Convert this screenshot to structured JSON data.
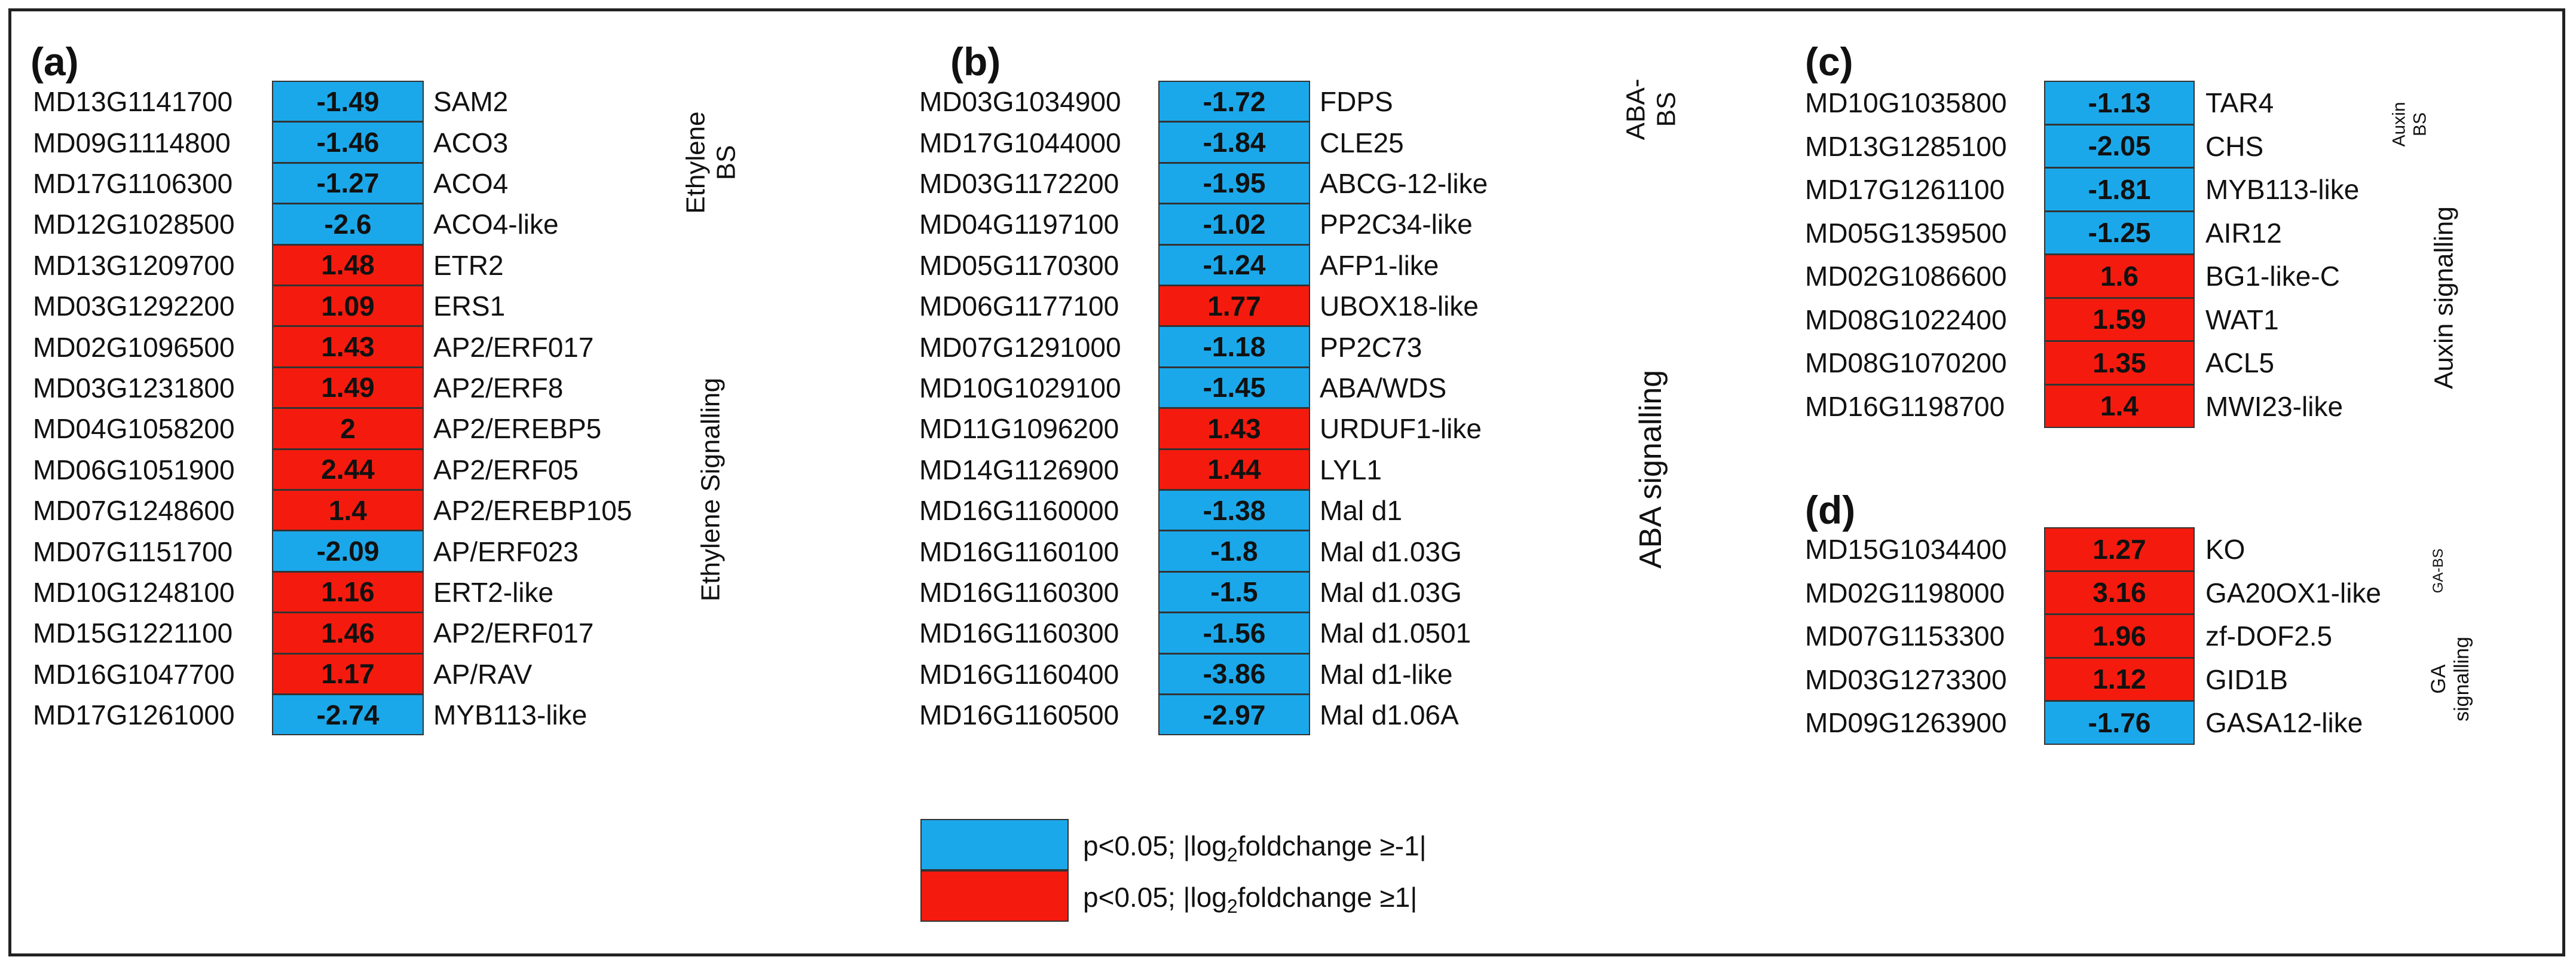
{
  "chart_data": [
    {
      "type": "heatmap",
      "panel": "(a)",
      "value_label": "log2 fold change",
      "rows": [
        {
          "id": "MD13G1141700",
          "value": -1.49,
          "display": "-1.49",
          "gene": "SAM2"
        },
        {
          "id": "MD09G1114800",
          "value": -1.46,
          "display": "-1.46",
          "gene": "ACO3"
        },
        {
          "id": "MD17G1106300",
          "value": -1.27,
          "display": "-1.27",
          "gene": "ACO4"
        },
        {
          "id": "MD12G1028500",
          "value": -2.6,
          "display": "-2.6",
          "gene": "ACO4-like"
        },
        {
          "id": "MD13G1209700",
          "value": 1.48,
          "display": "1.48",
          "gene": "ETR2"
        },
        {
          "id": "MD03G1292200",
          "value": 1.09,
          "display": "1.09",
          "gene": "ERS1"
        },
        {
          "id": "MD02G1096500",
          "value": 1.43,
          "display": "1.43",
          "gene": "AP2/ERF017"
        },
        {
          "id": "MD03G1231800",
          "value": 1.49,
          "display": "1.49",
          "gene": "AP2/ERF8"
        },
        {
          "id": "MD04G1058200",
          "value": 2,
          "display": "2",
          "gene": "AP2/EREBP5"
        },
        {
          "id": "MD06G1051900",
          "value": 2.44,
          "display": "2.44",
          "gene": "AP2/ERF05"
        },
        {
          "id": "MD07G1248600",
          "value": 1.4,
          "display": "1.4",
          "gene": "AP2/EREBP105"
        },
        {
          "id": "MD07G1151700",
          "value": -2.09,
          "display": "-2.09",
          "gene": "AP/ERF023"
        },
        {
          "id": "MD10G1248100",
          "value": 1.16,
          "display": "1.16",
          "gene": "ERT2-like"
        },
        {
          "id": "MD15G1221100",
          "value": 1.46,
          "display": "1.46",
          "gene": "AP2/ERF017"
        },
        {
          "id": "MD16G1047700",
          "value": 1.17,
          "display": "1.17",
          "gene": "AP/RAV"
        },
        {
          "id": "MD17G1261000",
          "value": -2.74,
          "display": "-2.74",
          "gene": "MYB113-like"
        }
      ],
      "groups": [
        {
          "lines": [
            "Ethylene",
            "BS"
          ],
          "rows": [
            0,
            3
          ]
        },
        {
          "lines": [
            "Ethylene Signalling"
          ],
          "rows": [
            4,
            15
          ]
        }
      ]
    },
    {
      "type": "heatmap",
      "panel": "(b)",
      "value_label": "log2 fold change",
      "rows": [
        {
          "id": "MD03G1034900",
          "value": -1.72,
          "display": "-1.72",
          "gene": "FDPS"
        },
        {
          "id": "MD17G1044000",
          "value": -1.84,
          "display": "-1.84",
          "gene": "CLE25"
        },
        {
          "id": "MD03G1172200",
          "value": -1.95,
          "display": "-1.95",
          "gene": "ABCG-12-like"
        },
        {
          "id": "MD04G1197100",
          "value": -1.02,
          "display": "-1.02",
          "gene": "PP2C34-like"
        },
        {
          "id": "MD05G1170300",
          "value": -1.24,
          "display": "-1.24",
          "gene": "AFP1-like"
        },
        {
          "id": "MD06G1177100",
          "value": 1.77,
          "display": "1.77",
          "gene": "UBOX18-like"
        },
        {
          "id": "MD07G1291000",
          "value": -1.18,
          "display": "-1.18",
          "gene": "PP2C73"
        },
        {
          "id": "MD10G1029100",
          "value": -1.45,
          "display": "-1.45",
          "gene": "ABA/WDS"
        },
        {
          "id": "MD11G1096200",
          "value": 1.43,
          "display": "1.43",
          "gene": "URDUF1-like"
        },
        {
          "id": "MD14G1126900",
          "value": 1.44,
          "display": "1.44",
          "gene": "LYL1"
        },
        {
          "id": "MD16G1160000",
          "value": -1.38,
          "display": "-1.38",
          "gene": "Mal d1"
        },
        {
          "id": "MD16G1160100",
          "value": -1.8,
          "display": "-1.8",
          "gene": "Mal d1.03G"
        },
        {
          "id": "MD16G1160300",
          "value": -1.5,
          "display": "-1.5",
          "gene": "Mal d1.03G"
        },
        {
          "id": "MD16G1160300",
          "value": -1.56,
          "display": "-1.56",
          "gene": "Mal d1.0501"
        },
        {
          "id": "MD16G1160400",
          "value": -3.86,
          "display": "-3.86",
          "gene": "Mal d1-like"
        },
        {
          "id": "MD16G1160500",
          "value": -2.97,
          "display": "-2.97",
          "gene": "Mal d1.06A"
        }
      ],
      "groups": [
        {
          "lines": [
            "ABA-",
            "BS"
          ],
          "rows": [
            0,
            2
          ]
        },
        {
          "lines": [
            "ABA signalling"
          ],
          "rows": [
            3,
            15
          ]
        }
      ]
    },
    {
      "type": "heatmap",
      "panel": "(c)",
      "value_label": "log2 fold change",
      "rows": [
        {
          "id": "MD10G1035800",
          "value": -1.13,
          "display": "-1.13",
          "gene": "TAR4"
        },
        {
          "id": "MD13G1285100",
          "value": -2.05,
          "display": "-2.05",
          "gene": "CHS"
        },
        {
          "id": "MD17G1261100",
          "value": -1.81,
          "display": "-1.81",
          "gene": "MYB113-like"
        },
        {
          "id": "MD05G1359500",
          "value": -1.25,
          "display": "-1.25",
          "gene": "AIR12"
        },
        {
          "id": "MD02G1086600",
          "value": 1.6,
          "display": "1.6",
          "gene": "BG1-like-C"
        },
        {
          "id": "MD08G1022400",
          "value": 1.59,
          "display": "1.59",
          "gene": "WAT1"
        },
        {
          "id": "MD08G1070200",
          "value": 1.35,
          "display": "1.35",
          "gene": "ACL5"
        },
        {
          "id": "MD16G1198700",
          "value": 1.4,
          "display": "1.4",
          "gene": "MWI23-like"
        }
      ],
      "groups": [
        {
          "lines": [
            "Auxin",
            "BS"
          ],
          "rows": [
            0,
            1
          ]
        },
        {
          "lines": [
            "Auxin signalling"
          ],
          "rows": [
            2,
            7
          ]
        }
      ]
    },
    {
      "type": "heatmap",
      "panel": "(d)",
      "value_label": "log2 fold change",
      "rows": [
        {
          "id": "MD15G1034400",
          "value": 1.27,
          "display": "1.27",
          "gene": "KO"
        },
        {
          "id": "MD02G1198000",
          "value": 3.16,
          "display": "3.16",
          "gene": "GA20OX1-like"
        },
        {
          "id": "MD07G1153300",
          "value": 1.96,
          "display": "1.96",
          "gene": "zf-DOF2.5"
        },
        {
          "id": "MD03G1273300",
          "value": 1.12,
          "display": "1.12",
          "gene": "GID1B"
        },
        {
          "id": "MD09G1263900",
          "value": -1.76,
          "display": "-1.76",
          "gene": "GASA12-like"
        }
      ],
      "groups": [
        {
          "lines": [
            "GA-BS"
          ],
          "rows": [
            0,
            1
          ]
        },
        {
          "lines": [
            "GA",
            "signalling"
          ],
          "rows": [
            2,
            4
          ]
        }
      ]
    }
  ],
  "legend": {
    "items": [
      {
        "color": "#1ba8ea",
        "text": "p<0.05; |log",
        "sub": "2",
        "tail": "foldchange ≥-1|"
      },
      {
        "color": "#f41b0e",
        "text": "p<0.05; |log",
        "sub": "2",
        "tail": "foldchange ≥1|"
      }
    ]
  },
  "colors": {
    "negative": "#1ba8ea",
    "positive": "#f41b0e"
  }
}
